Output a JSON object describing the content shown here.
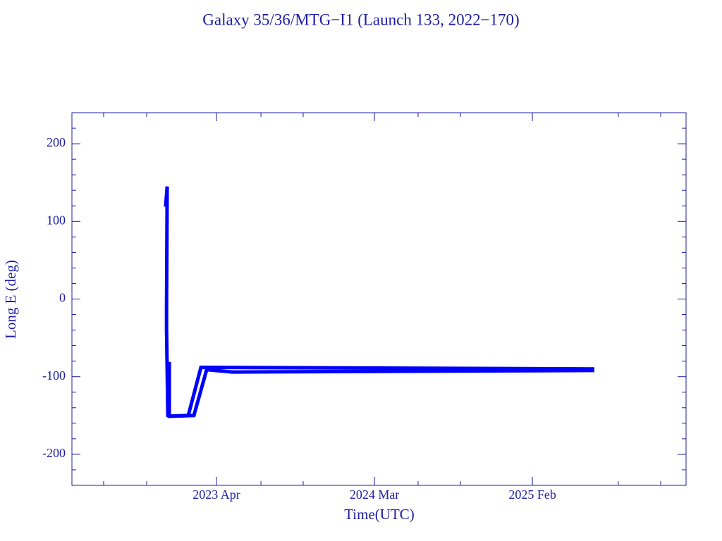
{
  "chart_data": {
    "type": "line",
    "title": "Galaxy 35/36/MTG−I1 (Launch 133, 2022−170)",
    "x_label": "Time(UTC)",
    "y_label": "Long E (deg)",
    "xlim": [
      2022.411,
      2025.975
    ],
    "ylim": [
      -240,
      240
    ],
    "xticks": [
      {
        "value": 2023.25,
        "label": "2023 Apr"
      },
      {
        "value": 2024.1667,
        "label": "2024 Mar"
      },
      {
        "value": 2025.0833,
        "label": "2025 Feb"
      }
    ],
    "xminorticks": [
      2022.595,
      2022.845,
      2023.508,
      2023.753,
      2024.42,
      2024.666,
      2025.582,
      2025.828
    ],
    "yticks": [
      -200,
      -100,
      0,
      100,
      200
    ],
    "yminorticks": [
      -220,
      -180,
      -160,
      -140,
      -120,
      -80,
      -60,
      -40,
      -20,
      20,
      40,
      60,
      80,
      120,
      140,
      160,
      180,
      220
    ],
    "series": [
      {
        "color": "#0000ff",
        "x": [
          2022.955,
          2022.964,
          2022.96,
          2022.96,
          2022.968,
          2022.976,
          2022.976,
          2023.086,
          2023.16,
          2025.443
        ],
        "values": [
          119,
          145,
          -11,
          -38,
          -152,
          -81,
          -151,
          -150,
          -88,
          -90
        ]
      },
      {
        "color": "#0000ff",
        "x": [
          2022.976,
          2023.119,
          2023.193,
          2023.342,
          2025.443
        ],
        "values": [
          -151,
          -150,
          -91,
          -94,
          -92
        ]
      }
    ]
  }
}
